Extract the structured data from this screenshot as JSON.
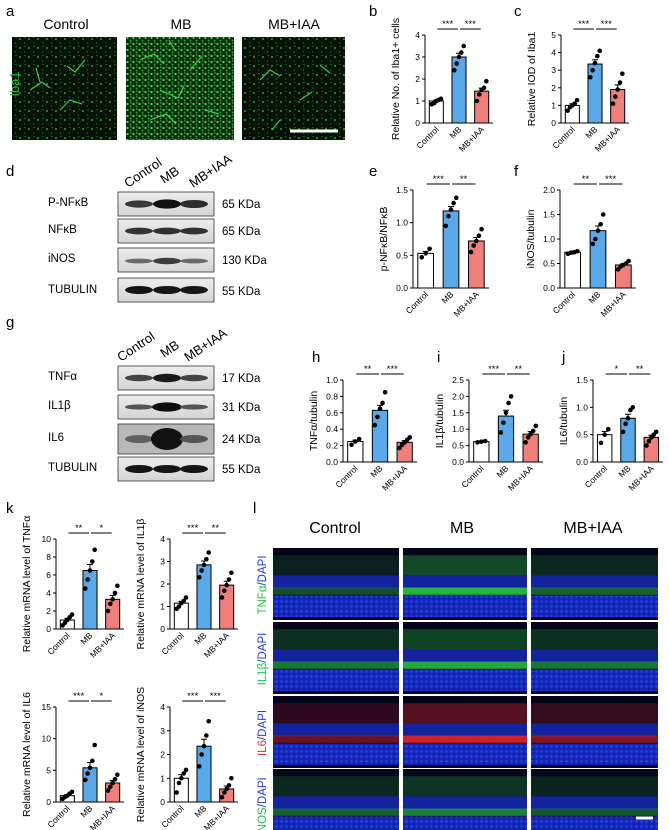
{
  "panel_letters": [
    "a",
    "b",
    "c",
    "d",
    "e",
    "f",
    "g",
    "h",
    "i",
    "j",
    "k",
    "l"
  ],
  "colors": {
    "control": "#ffffff",
    "mb": "#5ba8e8",
    "mbiaa": "#ef7f7b",
    "iba1_green": "#33cc33",
    "ifo_blue": "#1a2fd6",
    "ifo_green": "#2ee84a",
    "ifo_red": "#ff2a2a"
  },
  "panel_a": {
    "stain_label": "Iba1",
    "groups": [
      "Control",
      "MB",
      "MB+IAA"
    ]
  },
  "blot_d": {
    "groups": [
      "Control",
      "MB",
      "MB+IAA"
    ],
    "rows": [
      {
        "protein": "P-NFκB",
        "size": "65 KDa"
      },
      {
        "protein": "NFκB",
        "size": "65 KDa"
      },
      {
        "protein": "iNOS",
        "size": "130 KDa"
      },
      {
        "protein": "TUBULIN",
        "size": "55 KDa"
      }
    ]
  },
  "blot_g": {
    "groups": [
      "Control",
      "MB",
      "MB+IAA"
    ],
    "rows": [
      {
        "protein": "TNFα",
        "size": "17 KDa"
      },
      {
        "protein": "IL1β",
        "size": "31 KDa"
      },
      {
        "protein": "IL6",
        "size": "24 KDa"
      },
      {
        "protein": "TUBULIN",
        "size": "55 KDa"
      }
    ]
  },
  "panel_l": {
    "groups": [
      "Control",
      "MB",
      "MB+IAA"
    ],
    "rows": [
      {
        "marker": "TNFα",
        "dapi": "/DAPI"
      },
      {
        "marker": "IL1β",
        "dapi": "/DAPI"
      },
      {
        "marker": "IL6",
        "dapi": "/DAPI"
      },
      {
        "marker": "iNOS",
        "dapi": "/DAPI"
      }
    ]
  },
  "chart_data": [
    {
      "id": "b",
      "type": "bar",
      "categories": [
        "Control",
        "MB",
        "MB+IAA"
      ],
      "values": [
        1.0,
        3.0,
        1.45
      ],
      "points": [
        [
          0.85,
          0.9,
          1.0,
          1.05,
          1.1
        ],
        [
          2.4,
          2.7,
          3.0,
          3.2,
          3.5
        ],
        [
          1.0,
          1.3,
          1.5,
          1.6,
          1.9
        ]
      ],
      "ylabel": "Relative No. of Iba1+ cells",
      "ylim": [
        0,
        4
      ],
      "yticks": [
        "0",
        "1",
        "2",
        "3",
        "4"
      ],
      "sig": [
        {
          "from": 0,
          "to": 1,
          "label": "***"
        },
        {
          "from": 1,
          "to": 2,
          "label": "***"
        }
      ]
    },
    {
      "id": "c",
      "type": "bar",
      "categories": [
        "Control",
        "MB",
        "MB+IAA"
      ],
      "values": [
        1.0,
        3.35,
        1.9
      ],
      "points": [
        [
          0.7,
          0.9,
          1.0,
          1.1,
          1.3
        ],
        [
          2.6,
          3.0,
          3.4,
          3.8,
          4.1
        ],
        [
          1.1,
          1.5,
          1.9,
          2.3,
          2.8
        ]
      ],
      "ylabel": "Relative IOD of Iba1",
      "ylim": [
        0,
        5
      ],
      "yticks": [
        "0",
        "1",
        "2",
        "3",
        "4",
        "5"
      ],
      "sig": [
        {
          "from": 0,
          "to": 1,
          "label": "***"
        },
        {
          "from": 1,
          "to": 2,
          "label": "***"
        }
      ]
    },
    {
      "id": "e",
      "type": "bar",
      "categories": [
        "Control",
        "MB",
        "MB+IAA"
      ],
      "values": [
        0.53,
        1.18,
        0.72
      ],
      "points": [
        [
          0.47,
          0.53,
          0.6
        ],
        [
          0.95,
          1.1,
          1.2,
          1.3,
          1.38
        ],
        [
          0.55,
          0.65,
          0.72,
          0.8,
          0.9
        ]
      ],
      "ylabel": "p-NFκB/NFκB",
      "ylim": [
        0,
        1.5
      ],
      "yticks": [
        "0.0",
        "0.5",
        "1.0",
        "1.5"
      ],
      "sig": [
        {
          "from": 0,
          "to": 1,
          "label": "***"
        },
        {
          "from": 1,
          "to": 2,
          "label": "**"
        }
      ]
    },
    {
      "id": "f",
      "type": "bar",
      "categories": [
        "Control",
        "MB",
        "MB+IAA"
      ],
      "values": [
        0.73,
        1.17,
        0.47
      ],
      "points": [
        [
          0.7,
          0.72,
          0.73,
          0.75
        ],
        [
          0.9,
          1.0,
          1.17,
          1.3,
          1.5
        ],
        [
          0.38,
          0.44,
          0.47,
          0.5,
          0.55
        ]
      ],
      "ylabel": "iNOS/tubulin",
      "ylim": [
        0,
        2.0
      ],
      "yticks": [
        "0.0",
        "0.5",
        "1.0",
        "1.5",
        "2.0"
      ],
      "sig": [
        {
          "from": 0,
          "to": 1,
          "label": "**"
        },
        {
          "from": 1,
          "to": 2,
          "label": "***"
        }
      ]
    },
    {
      "id": "h",
      "type": "bar",
      "categories": [
        "Control",
        "MB",
        "MB+IAA"
      ],
      "values": [
        0.25,
        0.63,
        0.24
      ],
      "points": [
        [
          0.21,
          0.25,
          0.28
        ],
        [
          0.45,
          0.55,
          0.65,
          0.72,
          0.85
        ],
        [
          0.17,
          0.21,
          0.24,
          0.27,
          0.3
        ]
      ],
      "ylabel": "TNFα/tubulin",
      "ylim": [
        0,
        1.0
      ],
      "yticks": [
        "0.0",
        "0.2",
        "0.4",
        "0.6",
        "0.8",
        "1.0"
      ],
      "sig": [
        {
          "from": 0,
          "to": 1,
          "label": "**"
        },
        {
          "from": 1,
          "to": 2,
          "label": "***"
        }
      ]
    },
    {
      "id": "i",
      "type": "bar",
      "categories": [
        "Control",
        "MB",
        "MB+IAA"
      ],
      "values": [
        0.62,
        1.4,
        0.85
      ],
      "points": [
        [
          0.6,
          0.62,
          0.64
        ],
        [
          0.9,
          1.2,
          1.5,
          1.8,
          2.0
        ],
        [
          0.6,
          0.75,
          0.85,
          0.95,
          1.1
        ]
      ],
      "ylabel": "IL1β/tubulin",
      "ylim": [
        0,
        2.5
      ],
      "yticks": [
        "0.0",
        "0.5",
        "1.0",
        "1.5",
        "2.0",
        "2.5"
      ],
      "sig": [
        {
          "from": 0,
          "to": 1,
          "label": "***"
        },
        {
          "from": 1,
          "to": 2,
          "label": "**"
        }
      ]
    },
    {
      "id": "j",
      "type": "bar",
      "categories": [
        "Control",
        "MB",
        "MB+IAA"
      ],
      "values": [
        0.5,
        0.8,
        0.45
      ],
      "points": [
        [
          0.35,
          0.5,
          0.6
        ],
        [
          0.55,
          0.7,
          0.8,
          0.95,
          1.0
        ],
        [
          0.3,
          0.38,
          0.45,
          0.5,
          0.55
        ]
      ],
      "ylabel": "IL6/tubulin",
      "ylim": [
        0,
        1.5
      ],
      "yticks": [
        "0.0",
        "0.5",
        "1.0",
        "1.5"
      ],
      "sig": [
        {
          "from": 0,
          "to": 1,
          "label": "*"
        },
        {
          "from": 1,
          "to": 2,
          "label": "**"
        }
      ]
    },
    {
      "id": "k1",
      "type": "bar",
      "categories": [
        "Control",
        "MB",
        "MB+IAA"
      ],
      "values": [
        1.0,
        6.5,
        3.3
      ],
      "points": [
        [
          0.4,
          0.7,
          1.0,
          1.3,
          1.6
        ],
        [
          4.5,
          5.5,
          6.5,
          7.5,
          8.8
        ],
        [
          2.0,
          2.8,
          3.3,
          4.0,
          4.8
        ]
      ],
      "ylabel": "Relative mRNA level of TNFα",
      "ylim": [
        0,
        10
      ],
      "yticks": [
        "0",
        "2",
        "4",
        "6",
        "8",
        "10"
      ],
      "sig": [
        {
          "from": 0,
          "to": 1,
          "label": "**"
        },
        {
          "from": 1,
          "to": 2,
          "label": "*"
        }
      ]
    },
    {
      "id": "k2",
      "type": "bar",
      "categories": [
        "Control",
        "MB",
        "MB+IAA"
      ],
      "values": [
        1.15,
        2.85,
        1.95
      ],
      "points": [
        [
          0.9,
          1.0,
          1.15,
          1.25,
          1.4
        ],
        [
          2.3,
          2.6,
          2.85,
          3.1,
          3.4
        ],
        [
          1.4,
          1.7,
          1.95,
          2.2,
          2.5
        ]
      ],
      "ylabel": "Relative mRNA level of IL1β",
      "ylim": [
        0,
        4
      ],
      "yticks": [
        "0",
        "1",
        "2",
        "3",
        "4"
      ],
      "sig": [
        {
          "from": 0,
          "to": 1,
          "label": "***"
        },
        {
          "from": 1,
          "to": 2,
          "label": "**"
        }
      ]
    },
    {
      "id": "k3",
      "type": "bar",
      "categories": [
        "Control",
        "MB",
        "MB+IAA"
      ],
      "values": [
        1.0,
        5.4,
        3.0
      ],
      "points": [
        [
          0.5,
          0.8,
          1.0,
          1.3,
          1.6
        ],
        [
          3.5,
          4.5,
          5.4,
          6.5,
          9.0
        ],
        [
          1.8,
          2.4,
          3.0,
          3.6,
          4.3
        ]
      ],
      "ylabel": "Relative mRNA level of IL6",
      "ylim": [
        0,
        15
      ],
      "yticks": [
        "0",
        "5",
        "10",
        "15"
      ],
      "sig": [
        {
          "from": 0,
          "to": 1,
          "label": "***"
        },
        {
          "from": 1,
          "to": 2,
          "label": "*"
        }
      ]
    },
    {
      "id": "k4",
      "type": "bar",
      "categories": [
        "Control",
        "MB",
        "MB+IAA"
      ],
      "values": [
        1.0,
        2.35,
        0.55
      ],
      "points": [
        [
          0.4,
          0.8,
          1.0,
          1.2,
          1.35
        ],
        [
          1.5,
          2.0,
          2.35,
          2.8,
          3.4
        ],
        [
          0.2,
          0.4,
          0.55,
          0.7,
          1.0
        ]
      ],
      "ylabel": "Relative mRNA level of iNOS",
      "ylim": [
        0,
        4
      ],
      "yticks": [
        "0",
        "1",
        "2",
        "3",
        "4"
      ],
      "sig": [
        {
          "from": 0,
          "to": 1,
          "label": "***"
        },
        {
          "from": 1,
          "to": 2,
          "label": "***"
        }
      ]
    }
  ]
}
